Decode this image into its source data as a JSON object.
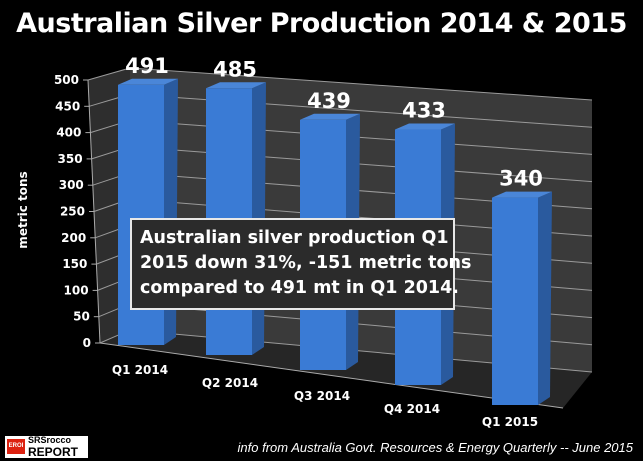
{
  "chart_data": {
    "type": "bar",
    "title": "Australian Silver Production 2014 & 2015",
    "ylabel": "metric tons",
    "xlabel": "",
    "categories": [
      "Q1 2014",
      "Q2 2014",
      "Q3 2014",
      "Q4 2014",
      "Q1 2015"
    ],
    "values": [
      491,
      485,
      439,
      433,
      340
    ],
    "data_labels": [
      "491",
      "485",
      "439",
      "433",
      "340"
    ],
    "ylim": [
      0,
      500
    ],
    "yticks": [
      "0",
      "50",
      "100",
      "150",
      "200",
      "250",
      "300",
      "350",
      "400",
      "450",
      "500"
    ],
    "grid": true,
    "style": "3d",
    "bar_color": "#3a7bd5",
    "annotation": [
      "Australian silver production Q1",
      "2015 down 31%, -151 metric tons",
      "compared to 491 mt in Q1 2014."
    ]
  },
  "footer": {
    "source": "info from Australia Govt. Resources & Energy Quarterly -- June 2015",
    "logo_top": "SRSrocco",
    "logo_bottom": "REPORT",
    "logo_badge": "EROI"
  }
}
